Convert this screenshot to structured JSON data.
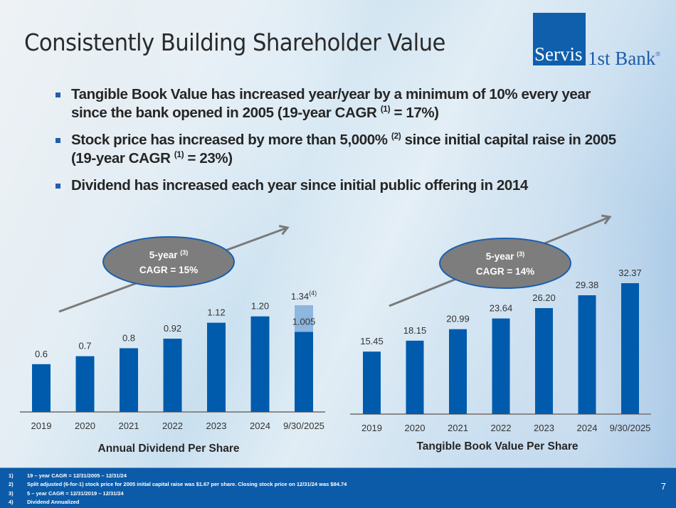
{
  "slide": {
    "title": "Consistently Building Shareholder Value",
    "page_number": "7"
  },
  "logo": {
    "part1": "Servis",
    "part2": "1st Bank",
    "registered": "®"
  },
  "colors": {
    "bar": "#005bac",
    "bar_light": "#8db7df",
    "axis": "#8a8a8a",
    "arrow": "#7a7a7a",
    "ellipse_fill": "#7d7d7d",
    "ellipse_stroke": "#1c5fae",
    "footer": "#0c5ba9"
  },
  "bullets": [
    {
      "pre": "Tangible Book Value has increased year/year by a minimum of 10% every year since the bank opened in 2005 (19-year CAGR ",
      "sup": "(1)",
      "post": " = 17%)"
    },
    {
      "pre": "Stock price has increased by more than 5,000% ",
      "sup": "(2)",
      "post": " since initial capital raise in 2005 (19-year CAGR ",
      "sup2": "(1)",
      "post2": " = 23%)"
    },
    {
      "pre": "Dividend has increased each year since initial public offering in 2014"
    }
  ],
  "chart_data": [
    {
      "type": "bar",
      "title": "Annual Dividend Per Share",
      "categories": [
        "2019",
        "2020",
        "2021",
        "2022",
        "2023",
        "2024",
        "9/30/2025"
      ],
      "values": [
        0.6,
        0.7,
        0.8,
        0.92,
        1.12,
        1.2,
        1.34
      ],
      "labels": [
        "0.6",
        "0.7",
        "0.8",
        "0.92",
        "1.12",
        "1.20",
        "1.34"
      ],
      "last_bar_stack": {
        "actual": 1.005,
        "actual_label": "1.005",
        "annualized": 1.34,
        "annualized_label": "1.34",
        "annualized_footnote": "(4)"
      },
      "xlabel": "",
      "ylabel": "",
      "ylim": [
        0,
        1.34
      ],
      "grid": false,
      "annotation": {
        "line1": "5-year",
        "line1_sup": "(3)",
        "line2": "CAGR = 15%"
      }
    },
    {
      "type": "bar",
      "title": "Tangible Book Value Per Share",
      "categories": [
        "2019",
        "2020",
        "2021",
        "2022",
        "2023",
        "2024",
        "9/30/2025"
      ],
      "values": [
        15.45,
        18.15,
        20.99,
        23.64,
        26.2,
        29.38,
        32.37
      ],
      "labels": [
        "15.45",
        "18.15",
        "20.99",
        "23.64",
        "26.20",
        "29.38",
        "32.37"
      ],
      "xlabel": "",
      "ylabel": "",
      "ylim": [
        0,
        32.37
      ],
      "grid": false,
      "annotation": {
        "line1": "5-year",
        "line1_sup": "(3)",
        "line2": "CAGR = 14%"
      }
    }
  ],
  "footnotes": [
    {
      "num": "1)",
      "text": "19 – year CAGR = 12/31/2005 – 12/31/24"
    },
    {
      "num": "2)",
      "text": "Split adjusted (6-for-1) stock price for 2005 initial capital raise was $1.67 per share.  Closing stock price on 12/31/24 was $84.74"
    },
    {
      "num": "3)",
      "text": "5 – year CAGR = 12/31/2019 – 12/31/24"
    },
    {
      "num": "4)",
      "text": "Dividend Annualized"
    }
  ]
}
